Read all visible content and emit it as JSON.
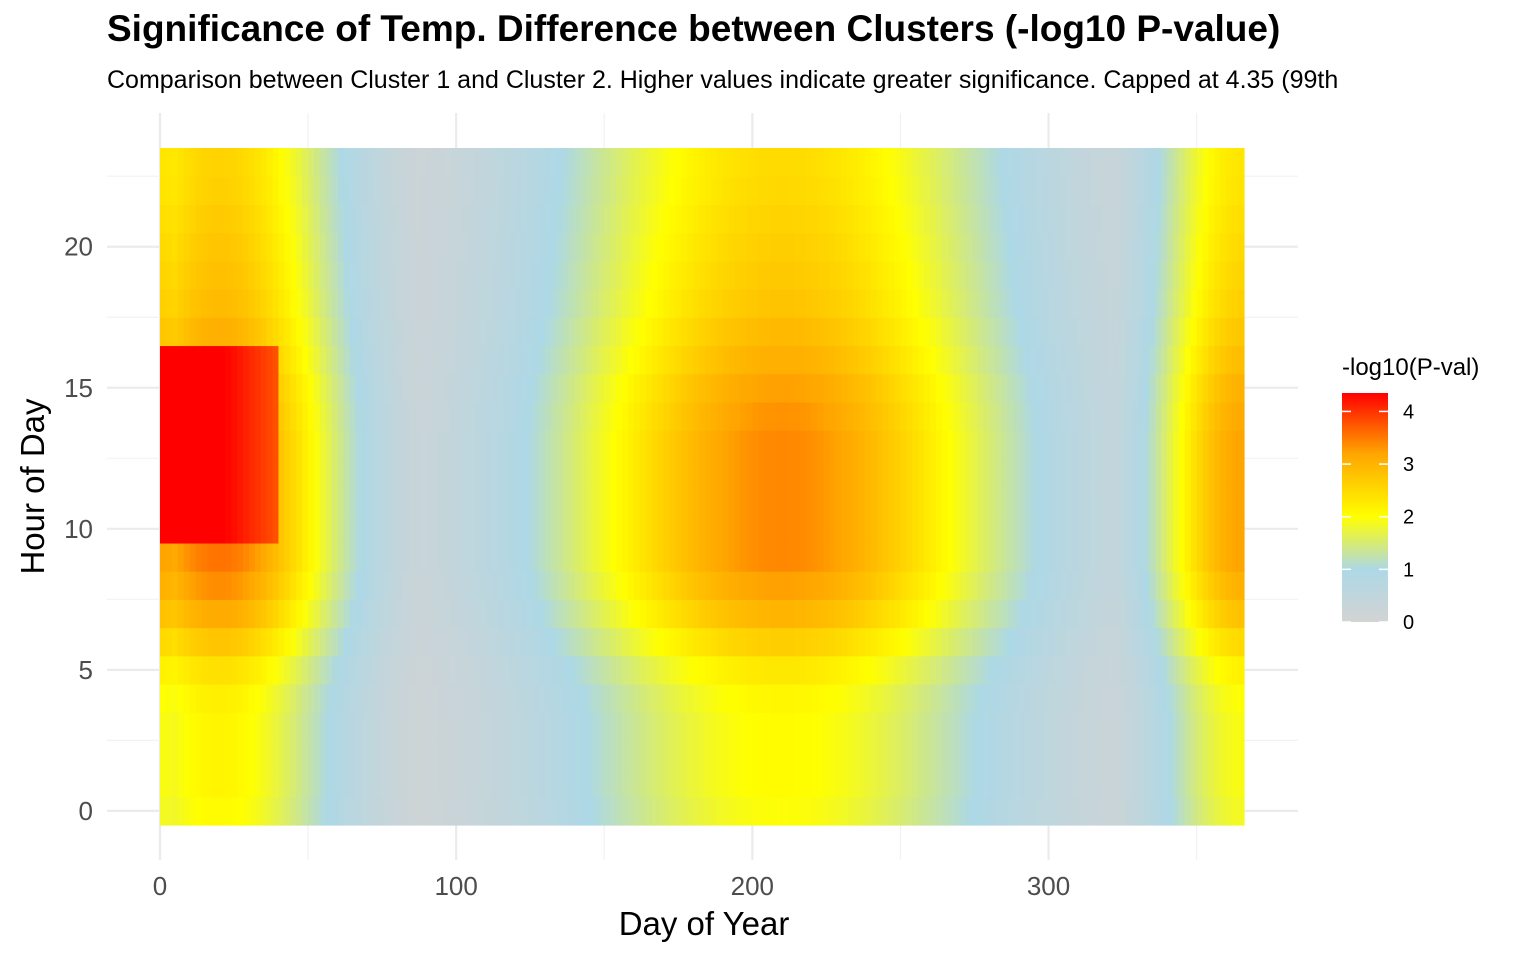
{
  "title": "Significance of Temp. Difference between Clusters (-log10 P-value)",
  "subtitle": "Comparison between Cluster 1 and Cluster 2. Higher values indicate greater significance. Capped at 4.35 (99th",
  "chart_data": {
    "type": "heatmap",
    "xlabel": "Day of Year",
    "ylabel": "Hour of Day",
    "xlim": [
      0,
      366
    ],
    "ylim": [
      0,
      23
    ],
    "x_ticks": [
      0,
      100,
      200,
      300
    ],
    "y_ticks": [
      0,
      5,
      10,
      15,
      20
    ],
    "grid": true,
    "legend": {
      "title": "-log10(P-val)",
      "position": "right",
      "ticks": [
        0,
        1,
        2,
        3,
        4
      ],
      "max": 4.35,
      "colors": [
        "#d3d3d3",
        "#add8e6",
        "#ffff00",
        "#ffa500",
        "#ff0000"
      ],
      "color_stops": [
        0,
        1,
        2,
        3.2,
        4.35
      ]
    },
    "z_model": {
      "description_source": "values estimated from the color field",
      "hour_profile": [
        0.58,
        0.6,
        0.6,
        0.6,
        0.62,
        0.68,
        0.78,
        0.88,
        0.95,
        1.0,
        1.0,
        1.0,
        1.0,
        1.0,
        0.98,
        0.95,
        0.9,
        0.86,
        0.82,
        0.8,
        0.78,
        0.76,
        0.74,
        0.73
      ],
      "peak_a": {
        "value": 4.35,
        "hours": [
          10,
          16
        ],
        "days": [
          0,
          40
        ]
      },
      "bumps": [
        {
          "center_day": 20,
          "width": 30,
          "amp": 3.55
        },
        {
          "center_day": 210,
          "width": 55,
          "amp": 3.4
        },
        {
          "center_day": 366,
          "width": 22,
          "amp": 3.2
        }
      ]
    }
  }
}
